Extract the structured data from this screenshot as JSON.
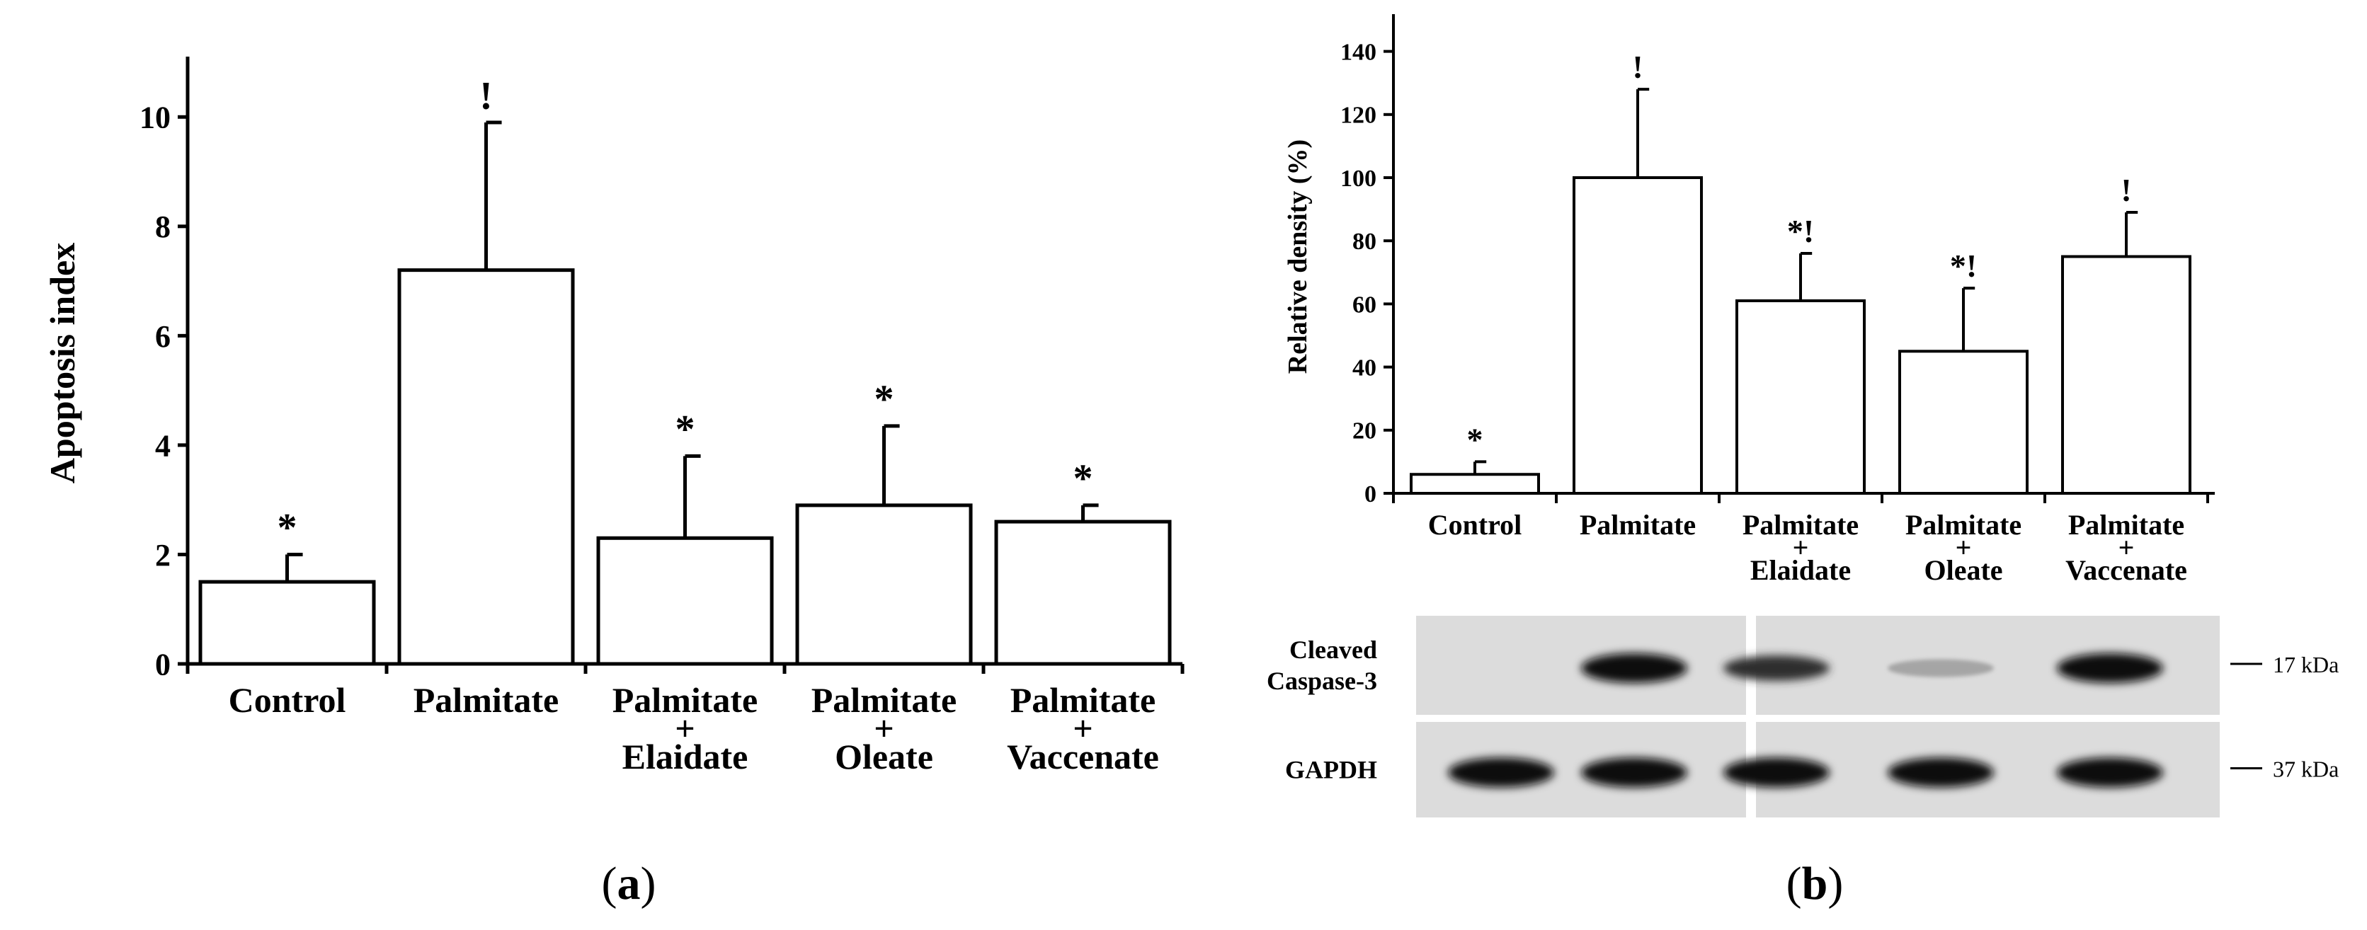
{
  "panels": {
    "a": {
      "label_open": "(",
      "letter": "a",
      "label_close": ")"
    },
    "b": {
      "label_open": "(",
      "letter": "b",
      "label_close": ")"
    }
  },
  "chart_data": [
    {
      "id": "a",
      "type": "bar",
      "ylabel": "Apoptosis index",
      "ylim": [
        0,
        11
      ],
      "yticks": [
        0,
        2,
        4,
        6,
        8,
        10
      ],
      "categories": [
        [
          "Control"
        ],
        [
          "Palmitate"
        ],
        [
          "Palmitate",
          "+",
          "Elaidate"
        ],
        [
          "Palmitate",
          "+",
          "Oleate"
        ],
        [
          "Palmitate",
          "+",
          "Vaccenate"
        ]
      ],
      "values": [
        1.5,
        7.2,
        2.3,
        2.9,
        2.6
      ],
      "errors": [
        0.5,
        2.7,
        1.5,
        1.45,
        0.3
      ],
      "markers": [
        "*",
        "!",
        "*",
        "*",
        "*"
      ]
    },
    {
      "id": "b",
      "type": "bar",
      "ylabel": "Relative density (%)",
      "ylim": [
        0,
        150
      ],
      "yticks": [
        0,
        20,
        40,
        60,
        80,
        100,
        120,
        140
      ],
      "categories": [
        [
          "Control"
        ],
        [
          "Palmitate"
        ],
        [
          "Palmitate",
          "+",
          "Elaidate"
        ],
        [
          "Palmitate",
          "+",
          "Oleate"
        ],
        [
          "Palmitate",
          "+",
          "Vaccenate"
        ]
      ],
      "values": [
        6,
        100,
        61,
        45,
        75
      ],
      "errors": [
        4,
        28,
        15,
        20,
        14
      ],
      "markers": [
        "*",
        "!",
        "*!",
        "*!",
        "!"
      ]
    }
  ],
  "blot": {
    "rows": [
      {
        "label": [
          "Cleaved",
          "Caspase-3"
        ],
        "size": "17 kDa",
        "intensity": [
          0.0,
          1.0,
          0.85,
          0.25,
          1.0
        ]
      },
      {
        "label": [
          "GAPDH"
        ],
        "size": "37 kDa",
        "intensity": [
          1.0,
          1.0,
          1.0,
          1.0,
          1.0
        ]
      }
    ]
  }
}
